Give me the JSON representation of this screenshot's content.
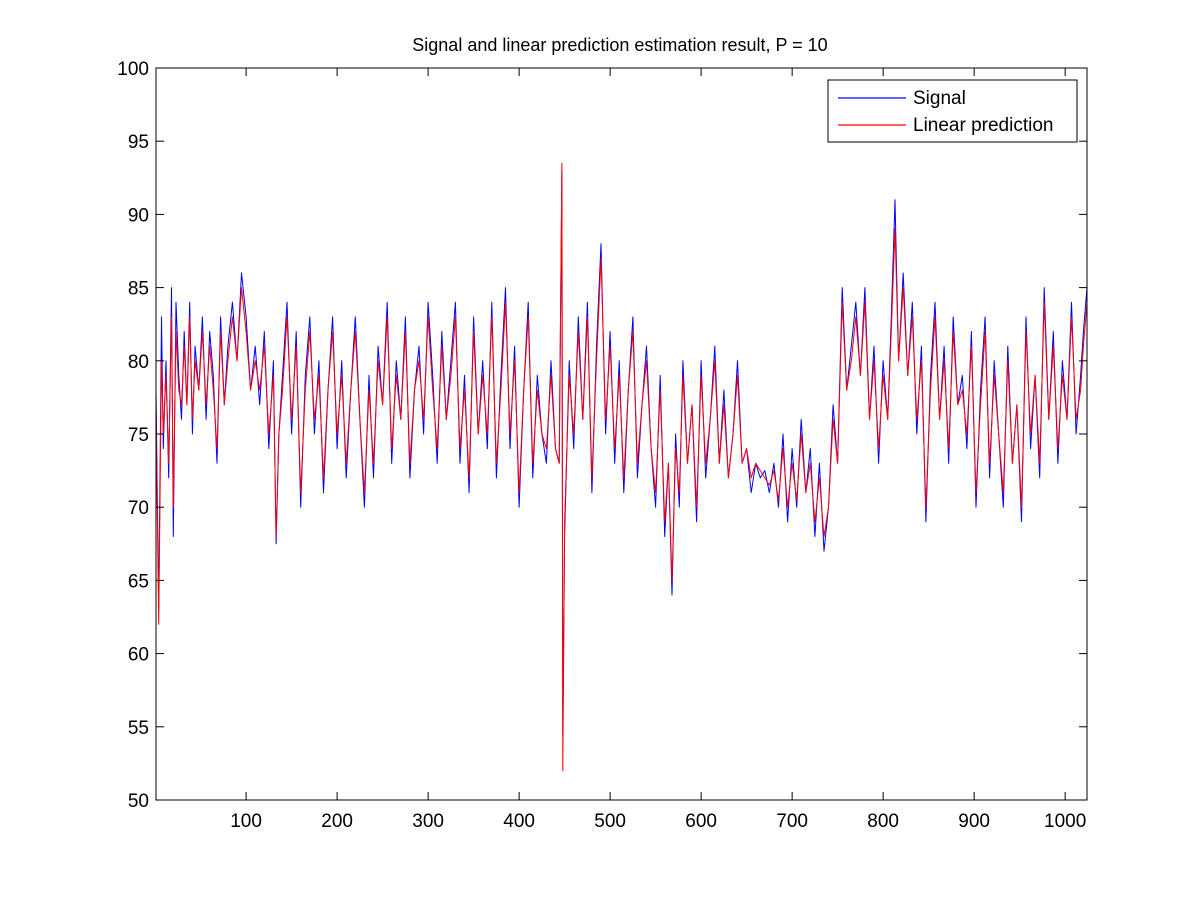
{
  "chart_data": {
    "type": "line",
    "title": "Signal and linear prediction estimation result, P = 10",
    "xlabel": "",
    "ylabel": "",
    "xlim": [
      1,
      1024
    ],
    "ylim": [
      50,
      100
    ],
    "xticks": [
      100,
      200,
      300,
      400,
      500,
      600,
      700,
      800,
      900,
      1000
    ],
    "yticks": [
      50,
      55,
      60,
      65,
      70,
      75,
      80,
      85,
      90,
      95,
      100
    ],
    "grid": false,
    "legend_position": "top-right",
    "series": [
      {
        "name": "Signal",
        "color": "#0000ff",
        "x": [
          1,
          4,
          7,
          9,
          12,
          15,
          18,
          20,
          23,
          26,
          29,
          32,
          35,
          38,
          41,
          44,
          48,
          52,
          56,
          60,
          64,
          68,
          72,
          76,
          80,
          85,
          90,
          95,
          100,
          105,
          110,
          115,
          120,
          125,
          130,
          133,
          136,
          140,
          145,
          150,
          155,
          160,
          165,
          170,
          175,
          180,
          185,
          190,
          195,
          200,
          205,
          210,
          215,
          220,
          225,
          230,
          235,
          240,
          245,
          250,
          255,
          260,
          265,
          270,
          275,
          280,
          285,
          290,
          295,
          300,
          305,
          310,
          315,
          320,
          325,
          330,
          335,
          340,
          345,
          350,
          355,
          360,
          365,
          370,
          375,
          380,
          385,
          390,
          395,
          400,
          405,
          410,
          415,
          420,
          425,
          430,
          435,
          440,
          444,
          447,
          448,
          450,
          455,
          460,
          465,
          470,
          475,
          480,
          485,
          490,
          495,
          500,
          505,
          510,
          515,
          520,
          525,
          530,
          535,
          540,
          545,
          550,
          555,
          560,
          564,
          568,
          572,
          576,
          580,
          585,
          590,
          595,
          600,
          605,
          610,
          615,
          620,
          625,
          630,
          635,
          640,
          645,
          650,
          655,
          660,
          665,
          670,
          675,
          680,
          685,
          690,
          695,
          700,
          705,
          710,
          715,
          720,
          725,
          730,
          735,
          740,
          745,
          750,
          755,
          760,
          765,
          770,
          775,
          780,
          785,
          790,
          795,
          800,
          805,
          809,
          813,
          817,
          822,
          827,
          832,
          837,
          842,
          847,
          852,
          857,
          862,
          867,
          872,
          877,
          882,
          887,
          892,
          897,
          902,
          907,
          912,
          917,
          922,
          927,
          932,
          937,
          942,
          947,
          952,
          957,
          962,
          967,
          972,
          977,
          982,
          987,
          992,
          997,
          1002,
          1007,
          1012,
          1017,
          1020,
          1024
        ],
        "values": [
          78,
          63,
          83,
          74,
          80,
          72,
          85,
          68,
          84,
          79,
          76,
          82,
          77,
          84,
          75,
          81,
          78,
          83,
          76,
          82,
          79,
          73,
          83,
          77,
          81,
          84,
          80,
          86,
          83,
          78,
          81,
          77,
          82,
          74,
          80,
          67.5,
          75,
          79,
          84,
          75,
          82,
          70,
          79,
          83,
          75,
          80,
          71,
          78,
          83,
          74,
          80,
          72,
          78,
          83,
          76,
          70,
          79,
          72,
          81,
          77,
          84,
          73,
          80,
          76,
          83,
          72,
          78,
          81,
          75,
          84,
          79,
          73,
          82,
          76,
          80,
          84,
          73,
          79,
          71,
          83,
          75,
          80,
          74,
          84,
          72,
          79,
          85,
          74,
          81,
          70,
          78,
          84,
          72,
          79,
          75,
          73,
          80,
          74,
          73,
          93,
          54.5,
          68,
          80,
          74,
          83,
          76,
          84,
          71,
          81,
          88,
          75,
          82,
          73,
          80,
          71,
          78,
          83,
          72,
          77,
          81,
          74,
          70,
          79,
          68,
          73,
          64,
          75,
          70,
          80,
          73,
          77,
          69,
          80,
          72,
          76,
          81,
          73,
          78,
          72,
          75,
          80,
          73,
          74,
          71,
          73,
          72,
          72.5,
          71,
          73,
          70,
          75,
          69,
          74,
          70,
          76,
          71,
          74,
          68,
          73,
          67,
          70,
          77,
          73,
          85,
          78,
          81,
          84,
          79,
          85,
          76,
          81,
          73,
          80,
          76,
          83,
          91,
          80,
          86,
          79,
          84,
          75,
          81,
          69,
          79,
          84,
          76,
          81,
          73,
          83,
          77,
          79,
          74,
          82,
          70,
          78,
          83,
          72,
          80,
          75,
          70,
          81,
          73,
          77,
          69,
          83,
          74,
          79,
          72,
          85,
          76,
          82,
          73,
          80,
          76,
          84,
          75,
          79,
          82,
          85
        ]
      },
      {
        "name": "Linear prediction",
        "color": "#ff0000",
        "x": [
          1,
          4,
          7,
          9,
          12,
          15,
          18,
          20,
          23,
          26,
          29,
          32,
          35,
          38,
          41,
          44,
          48,
          52,
          56,
          60,
          64,
          68,
          72,
          76,
          80,
          85,
          90,
          95,
          100,
          105,
          110,
          115,
          120,
          125,
          130,
          133,
          136,
          140,
          145,
          150,
          155,
          160,
          165,
          170,
          175,
          180,
          185,
          190,
          195,
          200,
          205,
          210,
          215,
          220,
          225,
          230,
          235,
          240,
          245,
          250,
          255,
          260,
          265,
          270,
          275,
          280,
          285,
          290,
          295,
          300,
          305,
          310,
          315,
          320,
          325,
          330,
          335,
          340,
          345,
          350,
          355,
          360,
          365,
          370,
          375,
          380,
          385,
          390,
          395,
          400,
          405,
          410,
          415,
          420,
          425,
          430,
          435,
          440,
          444,
          447,
          448,
          450,
          455,
          460,
          465,
          470,
          475,
          480,
          485,
          490,
          495,
          500,
          505,
          510,
          515,
          520,
          525,
          530,
          535,
          540,
          545,
          550,
          555,
          560,
          564,
          568,
          572,
          576,
          580,
          585,
          590,
          595,
          600,
          605,
          610,
          615,
          620,
          625,
          630,
          635,
          640,
          645,
          650,
          655,
          660,
          665,
          670,
          675,
          680,
          685,
          690,
          695,
          700,
          705,
          710,
          715,
          720,
          725,
          730,
          735,
          740,
          745,
          750,
          755,
          760,
          765,
          770,
          775,
          780,
          785,
          790,
          795,
          800,
          805,
          809,
          813,
          817,
          822,
          827,
          832,
          837,
          842,
          847,
          852,
          857,
          862,
          867,
          872,
          877,
          882,
          887,
          892,
          897,
          902,
          907,
          912,
          917,
          922,
          927,
          932,
          937,
          942,
          947,
          952,
          957,
          962,
          967,
          972,
          977,
          982,
          987,
          992,
          997,
          1002,
          1007,
          1012,
          1017,
          1020,
          1024
        ],
        "values": [
          77,
          62,
          80,
          75,
          79,
          73,
          83,
          70,
          82,
          78,
          77,
          81,
          77,
          83,
          76,
          80,
          78,
          82,
          77,
          81,
          78,
          74,
          82,
          77,
          80,
          83,
          80,
          85,
          82,
          78,
          80,
          78,
          81,
          75,
          79,
          68,
          75,
          78,
          83,
          76,
          81,
          71,
          78,
          82,
          76,
          79,
          72,
          78,
          82,
          75,
          79,
          73,
          78,
          82,
          76,
          71,
          78,
          73,
          80,
          77,
          83,
          74,
          79,
          76,
          82,
          73,
          78,
          80,
          76,
          83,
          78,
          74,
          81,
          76,
          79,
          83,
          74,
          78,
          72,
          82,
          75,
          79,
          75,
          83,
          73,
          78,
          84,
          75,
          80,
          71,
          78,
          83,
          73,
          78,
          75,
          74,
          79,
          74,
          73,
          93.5,
          52,
          69,
          79,
          75,
          82,
          76,
          83,
          72,
          80,
          87,
          76,
          81,
          74,
          79,
          72,
          78,
          82,
          73,
          77,
          80,
          74,
          71,
          78,
          69,
          73,
          65,
          74,
          71,
          79,
          73,
          77,
          70,
          79,
          73,
          76,
          80,
          73,
          77,
          72,
          75,
          79,
          73,
          74,
          72,
          73,
          72.5,
          72,
          71.5,
          72.5,
          70.5,
          74,
          70,
          73,
          70.5,
          75,
          71,
          73,
          69,
          72,
          68,
          70,
          76,
          73,
          84,
          78,
          80,
          83,
          79,
          84,
          76,
          80,
          74,
          79,
          76,
          82,
          89,
          80,
          85,
          79,
          83,
          76,
          80,
          70,
          78,
          83,
          76,
          80,
          74,
          82,
          77,
          78,
          75,
          81,
          71,
          77,
          82,
          73,
          79,
          75,
          71,
          80,
          73,
          77,
          70,
          82,
          75,
          79,
          73,
          84,
          76,
          81,
          74,
          79,
          76,
          83,
          76,
          78,
          81,
          84
        ]
      }
    ]
  }
}
